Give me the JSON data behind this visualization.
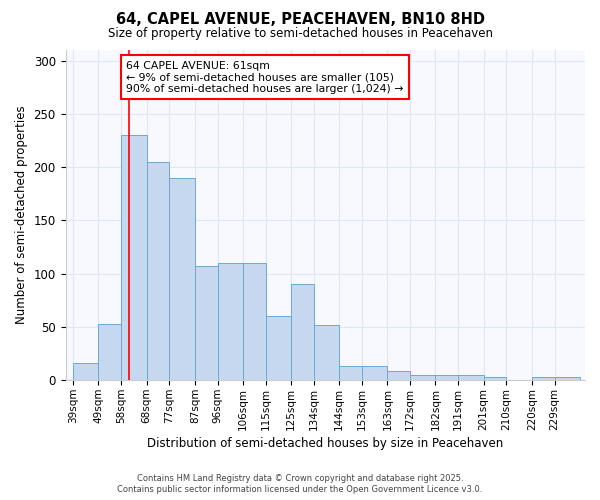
{
  "title1": "64, CAPEL AVENUE, PEACEHAVEN, BN10 8HD",
  "title2": "Size of property relative to semi-detached houses in Peacehaven",
  "xlabel": "Distribution of semi-detached houses by size in Peacehaven",
  "ylabel": "Number of semi-detached properties",
  "bin_labels": [
    "39sqm",
    "49sqm",
    "58sqm",
    "68sqm",
    "77sqm",
    "87sqm",
    "96sqm",
    "106sqm",
    "115sqm",
    "125sqm",
    "134sqm",
    "144sqm",
    "153sqm",
    "163sqm",
    "172sqm",
    "182sqm",
    "191sqm",
    "201sqm",
    "210sqm",
    "220sqm",
    "229sqm"
  ],
  "bin_left_edges": [
    39,
    49,
    58,
    68,
    77,
    87,
    96,
    106,
    115,
    125,
    134,
    144,
    153,
    163,
    172,
    182,
    191,
    201,
    210,
    220,
    229
  ],
  "bin_widths": [
    10,
    9,
    10,
    9,
    10,
    9,
    10,
    9,
    10,
    9,
    10,
    9,
    10,
    9,
    10,
    9,
    10,
    9,
    10,
    9,
    10
  ],
  "values": [
    16,
    53,
    230,
    205,
    190,
    107,
    110,
    110,
    60,
    90,
    52,
    13,
    13,
    9,
    5,
    5,
    5,
    3,
    0,
    3,
    3
  ],
  "bar_color": "#c5d8f0",
  "bar_edge_color": "#6aaad4",
  "bg_color": "#ffffff",
  "plot_bg_color": "#f7f9ff",
  "grid_color": "#e0e6f5",
  "red_line_x": 61,
  "annotation_title": "64 CAPEL AVENUE: 61sqm",
  "annotation_line1": "← 9% of semi-detached houses are smaller (105)",
  "annotation_line2": "90% of semi-detached houses are larger (1,024) →",
  "ylim": [
    0,
    310
  ],
  "yticks": [
    0,
    50,
    100,
    150,
    200,
    250,
    300
  ],
  "footer1": "Contains HM Land Registry data © Crown copyright and database right 2025.",
  "footer2": "Contains public sector information licensed under the Open Government Licence v3.0."
}
